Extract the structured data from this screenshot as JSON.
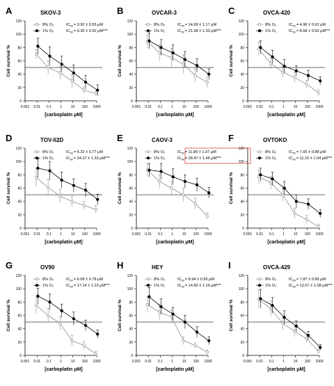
{
  "figure": {
    "common": {
      "xlabel": "[carboplatin μM]",
      "ylabel": "Cell survival %",
      "xticks": [
        "0.001",
        "0.01",
        "0.1",
        "1",
        "10",
        "100",
        "1000"
      ],
      "yticks": [
        "0",
        "20",
        "40",
        "60",
        "80",
        "100",
        "120"
      ],
      "x_values": [
        0.01,
        0.1,
        1,
        10,
        100,
        1000
      ],
      "reference_line_y": 50,
      "legend_prefix": "IC",
      "legend_subscript": "50",
      "normoxia_color": "#8c8c8c",
      "hypoxia_color": "#000000",
      "highlight_color": "#e04040"
    }
  },
  "chart_data": [
    {
      "type": "line",
      "panel": "A",
      "title": "SKOV-3",
      "xscale": "log",
      "xlim": [
        0.001,
        1000
      ],
      "ylim": [
        0,
        120
      ],
      "grid": false,
      "legend_position": "top-right",
      "series": [
        {
          "name": "8% O₂",
          "ic50_text": "= 3.92 ± 0.55 μM",
          "marker": "open-circle",
          "x": [
            0.01,
            0.1,
            1,
            10,
            100,
            1000
          ],
          "y": [
            70,
            50,
            42,
            30,
            16,
            11
          ],
          "err": [
            7,
            10,
            10,
            10,
            5,
            4
          ]
        },
        {
          "name": "1% O₂",
          "ic50_text": "= 9.35 ± 0.92 μM***",
          "marker": "filled-circle",
          "x": [
            0.01,
            0.1,
            1,
            10,
            100,
            1000
          ],
          "y": [
            82,
            67,
            55,
            42,
            28,
            16
          ],
          "err": [
            12,
            14,
            12,
            12,
            10,
            8
          ]
        }
      ]
    },
    {
      "type": "line",
      "panel": "B",
      "title": "OVCAR-3",
      "xscale": "log",
      "xlim": [
        0.001,
        1000
      ],
      "ylim": [
        0,
        120
      ],
      "grid": false,
      "legend_position": "top-right",
      "series": [
        {
          "name": "8% O₂",
          "ic50_text": "= 14.99 ± 1.17 μM",
          "marker": "open-circle",
          "x": [
            0.01,
            0.1,
            1,
            10,
            100,
            1000
          ],
          "y": [
            89,
            72,
            65,
            55,
            38,
            28
          ],
          "err": [
            10,
            12,
            14,
            14,
            10,
            8
          ]
        },
        {
          "name": "1% O₂",
          "ic50_text": "= 21.68 ± 1.33 μM***",
          "marker": "filled-circle",
          "x": [
            0.01,
            0.1,
            1,
            10,
            100,
            1000
          ],
          "y": [
            90,
            80,
            72,
            62,
            53,
            40
          ],
          "err": [
            12,
            12,
            12,
            12,
            10,
            8
          ]
        }
      ]
    },
    {
      "type": "line",
      "panel": "C",
      "title": "OVCA-420",
      "xscale": "log",
      "xlim": [
        0.001,
        1000
      ],
      "ylim": [
        0,
        120
      ],
      "grid": false,
      "legend_position": "top-right",
      "series": [
        {
          "name": "8% O₂",
          "ic50_text": "= 4.96 ± 0.62 μM",
          "marker": "open-circle",
          "x": [
            0.01,
            0.1,
            1,
            10,
            100,
            1000
          ],
          "y": [
            78,
            56,
            43,
            35,
            25,
            12
          ],
          "err": [
            10,
            8,
            8,
            8,
            6,
            5
          ]
        },
        {
          "name": "1% O₂",
          "ic50_text": "= 8.68 ± 0.93 μM***",
          "marker": "filled-circle",
          "x": [
            0.01,
            0.1,
            1,
            10,
            100,
            1000
          ],
          "y": [
            80,
            66,
            52,
            45,
            38,
            30
          ],
          "err": [
            10,
            10,
            10,
            8,
            8,
            6
          ]
        }
      ]
    },
    {
      "type": "line",
      "panel": "D",
      "title": "TOV-ll2D",
      "xscale": "log",
      "xlim": [
        0.001,
        1000
      ],
      "ylim": [
        0,
        120
      ],
      "grid": false,
      "legend_position": "top-right",
      "series": [
        {
          "name": "8% O₂",
          "ic50_text": "= 6.22 ± 0.77 μM",
          "marker": "open-circle",
          "x": [
            0.01,
            0.1,
            1,
            10,
            100,
            1000
          ],
          "y": [
            76,
            61,
            48,
            40,
            34,
            28
          ],
          "err": [
            14,
            12,
            10,
            8,
            6,
            6
          ]
        },
        {
          "name": "1% O₂",
          "ic50_text": "= 24.37 ± 1.33 μM***",
          "marker": "filled-circle",
          "x": [
            0.01,
            0.1,
            1,
            10,
            100,
            1000
          ],
          "y": [
            90,
            86,
            72,
            64,
            57,
            43
          ],
          "err": [
            14,
            14,
            12,
            10,
            10,
            8
          ]
        }
      ]
    },
    {
      "type": "line",
      "panel": "E",
      "title": "CAOV-3",
      "xscale": "log",
      "xlim": [
        0.001,
        1000
      ],
      "ylim": [
        0,
        120
      ],
      "grid": false,
      "legend_position": "top-right",
      "legend_highlight": "1% O₂",
      "series": [
        {
          "name": "8% O₂",
          "ic50_text": "= 11.89 ± 1.07 μM",
          "marker": "open-circle",
          "x": [
            0.01,
            0.1,
            1,
            10,
            100,
            1000
          ],
          "y": [
            87,
            70,
            60,
            50,
            37,
            18
          ],
          "err": [
            10,
            10,
            10,
            10,
            8,
            5
          ]
        },
        {
          "name": "1% O₂",
          "ic50_text": "= 28.47 ± 1.45 μM***",
          "marker": "filled-circle",
          "x": [
            0.01,
            0.1,
            1,
            10,
            100,
            1000
          ],
          "y": [
            87,
            85,
            77,
            70,
            65,
            53
          ],
          "err": [
            10,
            12,
            12,
            10,
            10,
            8
          ]
        }
      ]
    },
    {
      "type": "line",
      "panel": "F",
      "title": "OVTOKO",
      "xscale": "log",
      "xlim": [
        0.001,
        1000
      ],
      "ylim": [
        0,
        120
      ],
      "grid": false,
      "legend_position": "top-right",
      "series": [
        {
          "name": "8% O₂",
          "ic50_text": "= 7.05 ± 0.88 μM",
          "marker": "open-circle",
          "x": [
            0.01,
            0.1,
            1,
            10,
            100,
            1000
          ],
          "y": [
            77,
            68,
            50,
            22,
            13,
            2
          ],
          "err": [
            10,
            10,
            10,
            8,
            6,
            4
          ]
        },
        {
          "name": "1% O₂",
          "ic50_text": "= 11.15 ± 1.04 μM***",
          "marker": "filled-circle",
          "x": [
            0.01,
            0.1,
            1,
            10,
            100,
            1000
          ],
          "y": [
            80,
            74,
            60,
            40,
            36,
            22
          ],
          "err": [
            10,
            10,
            10,
            10,
            8,
            6
          ]
        }
      ]
    },
    {
      "type": "line",
      "panel": "G",
      "title": "OV90",
      "xscale": "log",
      "xlim": [
        0.001,
        1000
      ],
      "ylim": [
        0,
        120
      ],
      "grid": false,
      "legend_position": "top-right",
      "series": [
        {
          "name": "8% O₂",
          "ic50_text": "= 6.09 ± 0.78 μM",
          "marker": "open-circle",
          "x": [
            0.01,
            0.1,
            1,
            10,
            100,
            1000
          ],
          "y": [
            75,
            60,
            48,
            22,
            15,
            2
          ],
          "err": [
            12,
            10,
            10,
            8,
            6,
            4
          ]
        },
        {
          "name": "1% O₂",
          "ic50_text": "= 17.14 ± 1.23 μM***",
          "marker": "filled-circle",
          "x": [
            0.01,
            0.1,
            1,
            10,
            100,
            1000
          ],
          "y": [
            89,
            80,
            67,
            55,
            45,
            32
          ],
          "err": [
            12,
            12,
            10,
            10,
            8,
            6
          ]
        }
      ]
    },
    {
      "type": "line",
      "panel": "H",
      "title": "HEY",
      "xscale": "log",
      "xlim": [
        0.001,
        1000
      ],
      "ylim": [
        0,
        120
      ],
      "grid": false,
      "legend_position": "top-right",
      "series": [
        {
          "name": "8% O₂",
          "ic50_text": "= 8.94 ± 0.95 μM",
          "marker": "open-circle",
          "x": [
            0.01,
            0.1,
            1,
            10,
            100,
            1000
          ],
          "y": [
            76,
            65,
            58,
            22,
            15,
            5
          ],
          "err": [
            12,
            12,
            10,
            6,
            4,
            3
          ]
        },
        {
          "name": "1% O₂",
          "ic50_text": "= 14.65 ± 1.16 μM***",
          "marker": "filled-circle",
          "x": [
            0.01,
            0.1,
            1,
            10,
            100,
            1000
          ],
          "y": [
            88,
            73,
            62,
            50,
            35,
            22
          ],
          "err": [
            14,
            12,
            10,
            10,
            8,
            6
          ]
        }
      ]
    },
    {
      "type": "line",
      "panel": "I",
      "title": "OVCA-429",
      "xscale": "log",
      "xlim": [
        0.001,
        1000
      ],
      "ylim": [
        0,
        120
      ],
      "grid": false,
      "legend_position": "top-right",
      "series": [
        {
          "name": "8% O₂",
          "ic50_text": "= 7.87 ± 0.89 μM",
          "marker": "open-circle",
          "x": [
            0.01,
            0.1,
            1,
            10,
            100,
            1000
          ],
          "y": [
            84,
            70,
            48,
            36,
            25,
            6
          ],
          "err": [
            14,
            12,
            10,
            8,
            6,
            3
          ]
        },
        {
          "name": "1% O₂",
          "ic50_text": "= 12.07 ± 1.08 μM***",
          "marker": "filled-circle",
          "x": [
            0.01,
            0.1,
            1,
            10,
            100,
            1000
          ],
          "y": [
            85,
            75,
            57,
            44,
            30,
            12
          ],
          "err": [
            14,
            12,
            10,
            8,
            6,
            4
          ]
        }
      ]
    }
  ]
}
